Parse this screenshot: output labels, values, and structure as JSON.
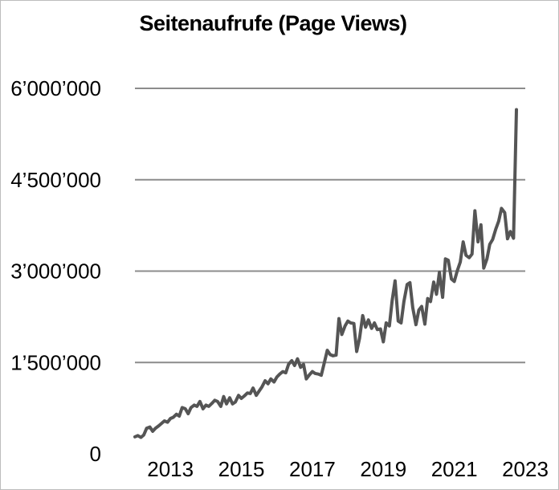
{
  "chart_data": {
    "type": "line",
    "title": "Seitenaufrufe (Page Views)",
    "xlabel": "",
    "ylabel": "",
    "ylim": [
      0,
      6000000
    ],
    "xlim": [
      2012,
      2023
    ],
    "y_ticks": [
      0,
      1500000,
      3000000,
      4500000,
      6000000
    ],
    "y_tick_labels": [
      "0",
      "1’500’000",
      "3’000’000",
      "4’500’000",
      "6’000’000"
    ],
    "x_ticks": [
      2013,
      2015,
      2017,
      2019,
      2021,
      2023
    ],
    "x_tick_labels": [
      "2013",
      "2015",
      "2017",
      "2019",
      "2021",
      "2023"
    ],
    "grid": "horizontal",
    "legend": "none",
    "line_color": "#555555",
    "grid_color": "#8c8c8c",
    "series": [
      {
        "values": [
          [
            2012.0,
            280000
          ],
          [
            2012.08,
            300000
          ],
          [
            2012.17,
            270000
          ],
          [
            2012.25,
            310000
          ],
          [
            2012.33,
            420000
          ],
          [
            2012.42,
            440000
          ],
          [
            2012.5,
            370000
          ],
          [
            2012.58,
            420000
          ],
          [
            2012.67,
            460000
          ],
          [
            2012.75,
            500000
          ],
          [
            2012.83,
            540000
          ],
          [
            2012.92,
            520000
          ],
          [
            2013.0,
            580000
          ],
          [
            2013.08,
            600000
          ],
          [
            2013.17,
            650000
          ],
          [
            2013.25,
            620000
          ],
          [
            2013.33,
            760000
          ],
          [
            2013.42,
            740000
          ],
          [
            2013.5,
            660000
          ],
          [
            2013.58,
            760000
          ],
          [
            2013.67,
            800000
          ],
          [
            2013.75,
            780000
          ],
          [
            2013.83,
            860000
          ],
          [
            2013.92,
            740000
          ],
          [
            2014.0,
            800000
          ],
          [
            2014.08,
            780000
          ],
          [
            2014.17,
            830000
          ],
          [
            2014.25,
            880000
          ],
          [
            2014.33,
            860000
          ],
          [
            2014.42,
            780000
          ],
          [
            2014.5,
            940000
          ],
          [
            2014.58,
            820000
          ],
          [
            2014.67,
            920000
          ],
          [
            2014.75,
            820000
          ],
          [
            2014.83,
            850000
          ],
          [
            2014.92,
            960000
          ],
          [
            2015.0,
            910000
          ],
          [
            2015.08,
            950000
          ],
          [
            2015.17,
            1000000
          ],
          [
            2015.25,
            990000
          ],
          [
            2015.33,
            1080000
          ],
          [
            2015.42,
            960000
          ],
          [
            2015.5,
            1030000
          ],
          [
            2015.58,
            1100000
          ],
          [
            2015.67,
            1200000
          ],
          [
            2015.75,
            1150000
          ],
          [
            2015.83,
            1230000
          ],
          [
            2015.92,
            1180000
          ],
          [
            2016.0,
            1260000
          ],
          [
            2016.08,
            1310000
          ],
          [
            2016.17,
            1350000
          ],
          [
            2016.25,
            1330000
          ],
          [
            2016.33,
            1470000
          ],
          [
            2016.42,
            1530000
          ],
          [
            2016.5,
            1450000
          ],
          [
            2016.58,
            1560000
          ],
          [
            2016.67,
            1420000
          ],
          [
            2016.75,
            1470000
          ],
          [
            2016.83,
            1230000
          ],
          [
            2016.92,
            1300000
          ],
          [
            2017.0,
            1350000
          ],
          [
            2017.08,
            1320000
          ],
          [
            2017.17,
            1310000
          ],
          [
            2017.25,
            1290000
          ],
          [
            2017.33,
            1480000
          ],
          [
            2017.42,
            1700000
          ],
          [
            2017.5,
            1630000
          ],
          [
            2017.58,
            1610000
          ],
          [
            2017.67,
            1620000
          ],
          [
            2017.75,
            2220000
          ],
          [
            2017.83,
            1960000
          ],
          [
            2017.92,
            2100000
          ],
          [
            2018.0,
            2180000
          ],
          [
            2018.08,
            2150000
          ],
          [
            2018.17,
            2140000
          ],
          [
            2018.25,
            1680000
          ],
          [
            2018.33,
            1900000
          ],
          [
            2018.42,
            2270000
          ],
          [
            2018.5,
            2080000
          ],
          [
            2018.58,
            2200000
          ],
          [
            2018.67,
            2060000
          ],
          [
            2018.75,
            2150000
          ],
          [
            2018.83,
            2040000
          ],
          [
            2018.92,
            2050000
          ],
          [
            2019.0,
            1840000
          ],
          [
            2019.08,
            2150000
          ],
          [
            2019.17,
            2100000
          ],
          [
            2019.25,
            2520000
          ],
          [
            2019.33,
            2840000
          ],
          [
            2019.42,
            2180000
          ],
          [
            2019.5,
            2150000
          ],
          [
            2019.58,
            2500000
          ],
          [
            2019.67,
            2780000
          ],
          [
            2019.75,
            2810000
          ],
          [
            2019.83,
            2400000
          ],
          [
            2019.92,
            2120000
          ],
          [
            2020.0,
            2360000
          ],
          [
            2020.08,
            2420000
          ],
          [
            2020.17,
            2130000
          ],
          [
            2020.25,
            2550000
          ],
          [
            2020.33,
            2500000
          ],
          [
            2020.42,
            2820000
          ],
          [
            2020.5,
            2620000
          ],
          [
            2020.58,
            2980000
          ],
          [
            2020.67,
            2570000
          ],
          [
            2020.75,
            3200000
          ],
          [
            2020.83,
            3180000
          ],
          [
            2020.92,
            2870000
          ],
          [
            2021.0,
            2830000
          ],
          [
            2021.08,
            3000000
          ],
          [
            2021.17,
            3150000
          ],
          [
            2021.25,
            3480000
          ],
          [
            2021.33,
            3260000
          ],
          [
            2021.42,
            3220000
          ],
          [
            2021.5,
            3280000
          ],
          [
            2021.58,
            3990000
          ],
          [
            2021.67,
            3480000
          ],
          [
            2021.75,
            3760000
          ],
          [
            2021.83,
            3050000
          ],
          [
            2021.92,
            3200000
          ],
          [
            2022.0,
            3440000
          ],
          [
            2022.08,
            3520000
          ],
          [
            2022.17,
            3690000
          ],
          [
            2022.25,
            3820000
          ],
          [
            2022.33,
            4030000
          ],
          [
            2022.42,
            3960000
          ],
          [
            2022.5,
            3530000
          ],
          [
            2022.58,
            3650000
          ],
          [
            2022.67,
            3540000
          ],
          [
            2022.75,
            5650000
          ]
        ]
      }
    ]
  }
}
